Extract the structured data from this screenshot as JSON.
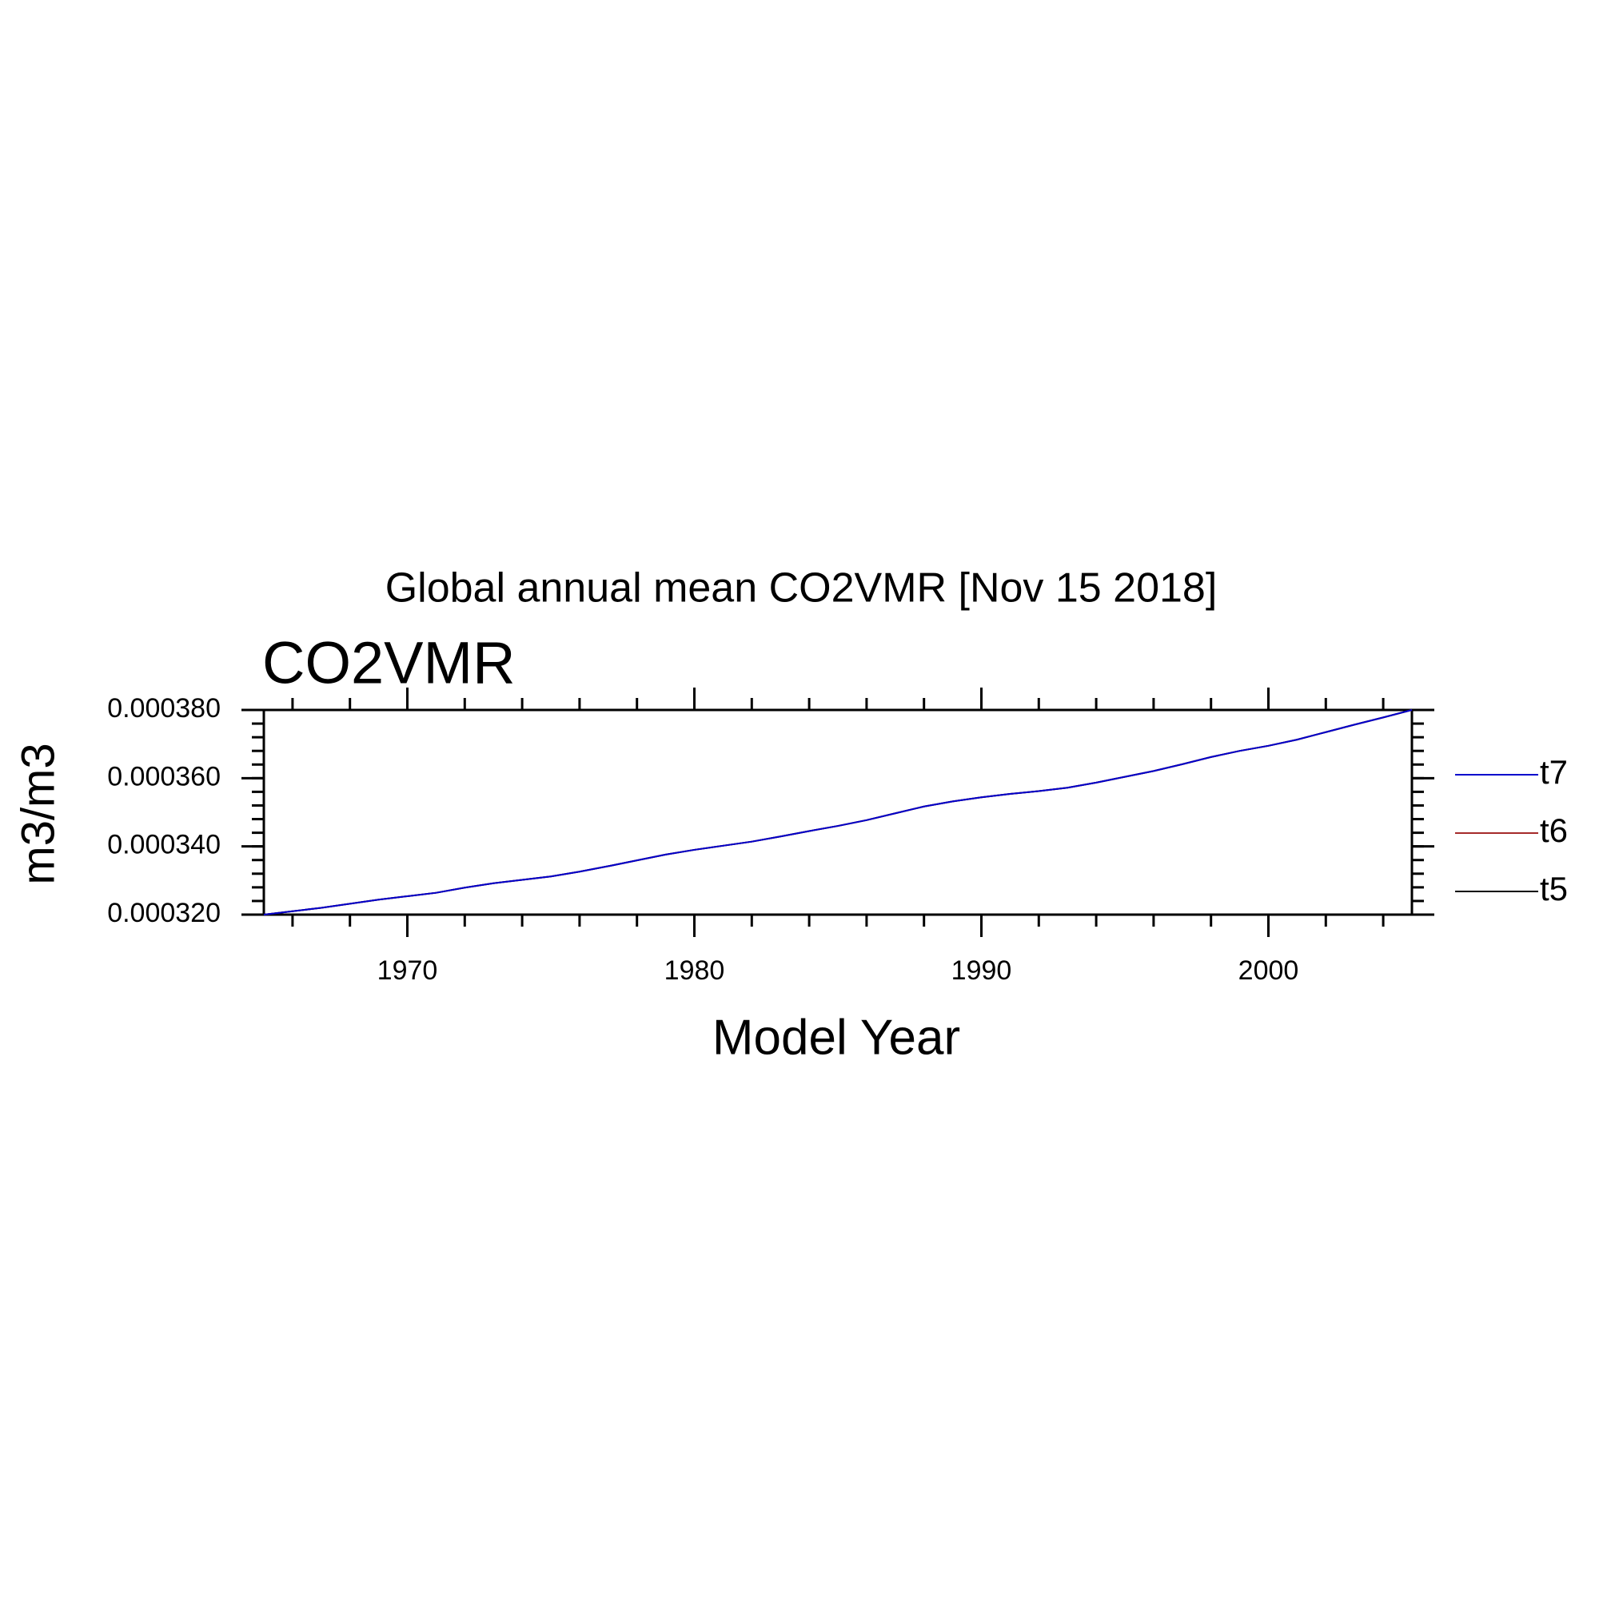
{
  "chart_data": {
    "type": "line",
    "title": "Global annual mean CO2VMR [Nov 15 2018]",
    "subtitle": "CO2VMR",
    "x_label": "Model Year",
    "y_label": "m3/m3",
    "x": [
      1965,
      1966,
      1967,
      1968,
      1969,
      1970,
      1971,
      1972,
      1973,
      1974,
      1975,
      1976,
      1977,
      1978,
      1979,
      1980,
      1981,
      1982,
      1983,
      1984,
      1985,
      1986,
      1987,
      1988,
      1989,
      1990,
      1991,
      1992,
      1993,
      1994,
      1995,
      1996,
      1997,
      1998,
      1999,
      2000,
      2001,
      2002,
      2003,
      2004,
      2005
    ],
    "series": [
      {
        "name": "t5",
        "color": "#000000",
        "values": [
          0.00032,
          0.000321,
          0.000322,
          0.0003232,
          0.0003244,
          0.0003254,
          0.0003264,
          0.0003279,
          0.0003292,
          0.0003302,
          0.0003312,
          0.0003326,
          0.0003342,
          0.0003359,
          0.0003376,
          0.000339,
          0.0003402,
          0.0003414,
          0.0003429,
          0.0003445,
          0.000346,
          0.0003477,
          0.0003497,
          0.0003517,
          0.0003532,
          0.0003544,
          0.0003554,
          0.0003562,
          0.0003572,
          0.0003587,
          0.0003604,
          0.0003621,
          0.0003641,
          0.0003662,
          0.000368,
          0.0003695,
          0.0003713,
          0.0003735,
          0.0003757,
          0.0003778,
          0.00038
        ]
      },
      {
        "name": "t6",
        "color": "#a52a2a",
        "values": [
          0.00032,
          0.000321,
          0.000322,
          0.0003232,
          0.0003244,
          0.0003254,
          0.0003264,
          0.0003279,
          0.0003292,
          0.0003302,
          0.0003312,
          0.0003326,
          0.0003342,
          0.0003359,
          0.0003376,
          0.000339,
          0.0003402,
          0.0003414,
          0.0003429,
          0.0003445,
          0.000346,
          0.0003477,
          0.0003497,
          0.0003517,
          0.0003532,
          0.0003544,
          0.0003554,
          0.0003562,
          0.0003572,
          0.0003587,
          0.0003604,
          0.0003621,
          0.0003641,
          0.0003662,
          0.000368,
          0.0003695,
          0.0003713,
          0.0003735,
          0.0003757,
          0.0003778,
          0.00038
        ]
      },
      {
        "name": "t7",
        "color": "#0000cc",
        "values": [
          0.00032,
          0.000321,
          0.000322,
          0.0003232,
          0.0003244,
          0.0003254,
          0.0003264,
          0.0003279,
          0.0003292,
          0.0003302,
          0.0003312,
          0.0003326,
          0.0003342,
          0.0003359,
          0.0003376,
          0.000339,
          0.0003402,
          0.0003414,
          0.0003429,
          0.0003445,
          0.000346,
          0.0003477,
          0.0003497,
          0.0003517,
          0.0003532,
          0.0003544,
          0.0003554,
          0.0003562,
          0.0003572,
          0.0003587,
          0.0003604,
          0.0003621,
          0.0003641,
          0.0003662,
          0.000368,
          0.0003695,
          0.0003713,
          0.0003735,
          0.0003757,
          0.0003778,
          0.00038
        ]
      }
    ],
    "xlim": [
      1965,
      2005
    ],
    "xticks": [
      1970,
      1980,
      1990,
      2000
    ],
    "ylim": [
      0.00032,
      0.00038
    ],
    "yticks": [
      {
        "value": 0.00032,
        "label": "0.000320"
      },
      {
        "value": 0.00034,
        "label": "0.000340"
      },
      {
        "value": 0.00036,
        "label": "0.000360"
      },
      {
        "value": 0.00038,
        "label": "0.000380"
      }
    ],
    "grid": false
  }
}
